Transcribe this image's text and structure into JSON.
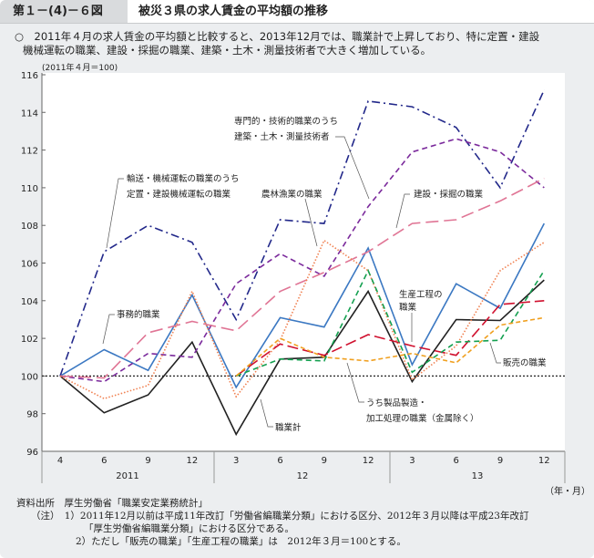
{
  "header": {
    "figure_number": "第１－(4)－６図",
    "title": "被災３県の求人賃金の平均額の推移"
  },
  "summary": {
    "line1": "○　2011年４月の求人賃金の平均額と比較すると、2013年12月では、職業計で上昇しており、特に定置・建設",
    "line2": "機械運転の職業、建設・採掘の職業、建築・土木・測量技術者で大きく増加している。"
  },
  "chart_data": {
    "type": "line",
    "ylabel": "(2011年４月＝100)",
    "xlabel": "（年・月）",
    "ylim": [
      96,
      116
    ],
    "yticks": [
      96,
      98,
      100,
      102,
      104,
      106,
      108,
      110,
      112,
      114,
      116
    ],
    "baseline": 100,
    "x": [
      "2011-04",
      "2011-06",
      "2011-09",
      "2011-12",
      "2012-03",
      "2012-06",
      "2012-09",
      "2012-12",
      "2013-03",
      "2013-06",
      "2013-09",
      "2013-12"
    ],
    "month_labels": [
      "4",
      "6",
      "9",
      "12",
      "3",
      "6",
      "9",
      "12",
      "3",
      "6",
      "9",
      "12"
    ],
    "year_labels": [
      "2011",
      "12",
      "13"
    ],
    "series": [
      {
        "name": "職業計",
        "color": "#222222",
        "dash": "",
        "values": [
          100,
          98.05,
          99.0,
          101.8,
          96.9,
          100.9,
          101.0,
          104.5,
          99.7,
          103.0,
          102.95,
          105.1
        ]
      },
      {
        "name": "事務的職業",
        "color": "#3b78c2",
        "dash": "",
        "values": [
          100,
          101.4,
          100.3,
          104.3,
          99.4,
          103.1,
          102.6,
          106.8,
          100.6,
          104.9,
          103.6,
          108.1
        ]
      },
      {
        "name": "輸送・機械運転の職業のうち 定置・建設機械運転の職業",
        "color": "#22288a",
        "dash": "9 4 2 4",
        "values": [
          100,
          106.6,
          108.0,
          107.1,
          103.0,
          108.3,
          108.1,
          114.6,
          114.3,
          113.2,
          110.0,
          115.2
        ]
      },
      {
        "name": "専門的・技術的職業のうち 建築・土木・測量技術者",
        "color": "#7b2a9c",
        "dash": "6 4",
        "values": [
          100,
          99.7,
          101.2,
          101.0,
          104.9,
          106.5,
          105.3,
          109.0,
          111.9,
          112.6,
          111.9,
          110.0
        ]
      },
      {
        "name": "建設・採掘の職業",
        "color": "#e07595",
        "dash": "14 6",
        "values": [
          100,
          99.9,
          102.3,
          102.9,
          102.4,
          104.5,
          105.5,
          106.6,
          108.1,
          108.3,
          109.3,
          110.5
        ]
      },
      {
        "name": "農林漁業の職業",
        "color": "#f08050",
        "dash": "1.5 2",
        "values": [
          100,
          98.8,
          99.5,
          104.5,
          98.9,
          101.9,
          107.2,
          105.6,
          99.8,
          101.6,
          105.6,
          107.1
        ]
      },
      {
        "name": "生産工程の職業",
        "color": "#d0102e",
        "dash": "12 5",
        "values": [
          null,
          null,
          null,
          null,
          100,
          101.7,
          101.1,
          102.2,
          101.6,
          101.1,
          103.8,
          104.0
        ]
      },
      {
        "name": "販売の職業",
        "color": "#14a050",
        "dash": "6 4",
        "values": [
          null,
          null,
          null,
          null,
          100,
          100.9,
          100.8,
          105.6,
          100.2,
          101.8,
          101.9,
          105.6
        ]
      },
      {
        "name": "うち製品製造・加工処理の職業（金属除く）",
        "color": "#f0a020",
        "dash": "5 3",
        "values": [
          null,
          null,
          null,
          null,
          100,
          102.0,
          101.0,
          100.8,
          101.2,
          100.7,
          102.7,
          103.1
        ]
      }
    ],
    "annotations": {
      "senmon_1": "専門的・技術的職業のうち",
      "senmon_2": "建築・土木・測量技術者",
      "yuso_1": "輸送・機械運転の職業のうち",
      "yuso_2": "定置・建設機械運転の職業",
      "norin": "農林漁業の職業",
      "kensetsu": "建設・採掘の職業",
      "jimu": "事務的職業",
      "seisan_1": "生産工程の",
      "seisan_2": "職業",
      "hanbai": "販売の職業",
      "seihin_1": "うち製品製造・",
      "seihin_2": "加工処理の職業（金属除く）",
      "total": "職業計"
    }
  },
  "notes": {
    "source": "資料出所　厚生労働省「職業安定業務統計」",
    "note1": "（注）　1）2011年12月以前は平成11年改訂「労働省編職業分類」における区分、2012年３月以降は平成23年改訂",
    "note1b": "「厚生労働省編職業分類」における区分である。",
    "note2": "2）ただし「販売の職業」「生産工程の職業」は　2012年３月＝100とする。"
  }
}
